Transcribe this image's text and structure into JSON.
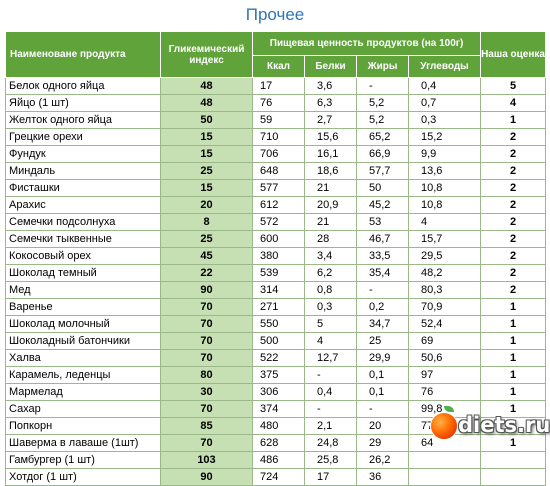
{
  "title": "Прочее",
  "headers": {
    "name": "Наименоване продукта",
    "gi": "Гликемический индекс",
    "nutrition": "Пищевая ценность продуктов (на 100г)",
    "kcal": "Ккал",
    "protein": "Белки",
    "fat": "Жиры",
    "carbs": "Углеводы",
    "rating": "Наша оценка"
  },
  "rows": [
    {
      "name": "Белок одного яйца",
      "gi": "48",
      "kcal": "17",
      "protein": "3,6",
      "fat": "-",
      "carbs": "0,4",
      "rating": "5"
    },
    {
      "name": "Яйцо (1 шт)",
      "gi": "48",
      "kcal": "76",
      "protein": "6,3",
      "fat": "5,2",
      "carbs": "0,7",
      "rating": "4"
    },
    {
      "name": "Желток одного яйца",
      "gi": "50",
      "kcal": "59",
      "protein": "2,7",
      "fat": "5,2",
      "carbs": "0,3",
      "rating": "1"
    },
    {
      "name": "Грецкие орехи",
      "gi": "15",
      "kcal": "710",
      "protein": "15,6",
      "fat": "65,2",
      "carbs": "15,2",
      "rating": "2"
    },
    {
      "name": "Фундук",
      "gi": "15",
      "kcal": "706",
      "protein": "16,1",
      "fat": "66,9",
      "carbs": "9,9",
      "rating": "2"
    },
    {
      "name": "Миндаль",
      "gi": "25",
      "kcal": "648",
      "protein": "18,6",
      "fat": "57,7",
      "carbs": "13,6",
      "rating": "2"
    },
    {
      "name": "Фисташки",
      "gi": "15",
      "kcal": "577",
      "protein": "21",
      "fat": "50",
      "carbs": "10,8",
      "rating": "2"
    },
    {
      "name": "Арахис",
      "gi": "20",
      "kcal": "612",
      "protein": "20,9",
      "fat": "45,2",
      "carbs": "10,8",
      "rating": "2"
    },
    {
      "name": "Семечки подсолнуха",
      "gi": "8",
      "kcal": "572",
      "protein": "21",
      "fat": "53",
      "carbs": "4",
      "rating": "2"
    },
    {
      "name": "Семечки тыквенные",
      "gi": "25",
      "kcal": "600",
      "protein": "28",
      "fat": "46,7",
      "carbs": "15,7",
      "rating": "2"
    },
    {
      "name": "Кокосовый орех",
      "gi": "45",
      "kcal": "380",
      "protein": "3,4",
      "fat": "33,5",
      "carbs": "29,5",
      "rating": "2"
    },
    {
      "name": "Шоколад темный",
      "gi": "22",
      "kcal": "539",
      "protein": "6,2",
      "fat": "35,4",
      "carbs": "48,2",
      "rating": "2"
    },
    {
      "name": "Мед",
      "gi": "90",
      "kcal": "314",
      "protein": "0,8",
      "fat": "-",
      "carbs": "80,3",
      "rating": "2"
    },
    {
      "name": "Варенье",
      "gi": "70",
      "kcal": "271",
      "protein": "0,3",
      "fat": "0,2",
      "carbs": "70,9",
      "rating": "1"
    },
    {
      "name": "Шоколад молочный",
      "gi": "70",
      "kcal": "550",
      "protein": "5",
      "fat": "34,7",
      "carbs": "52,4",
      "rating": "1"
    },
    {
      "name": "Шоколадный батончики",
      "gi": "70",
      "kcal": "500",
      "protein": "4",
      "fat": "25",
      "carbs": "69",
      "rating": "1"
    },
    {
      "name": "Халва",
      "gi": "70",
      "kcal": "522",
      "protein": "12,7",
      "fat": "29,9",
      "carbs": "50,6",
      "rating": "1"
    },
    {
      "name": "Карамель, леденцы",
      "gi": "80",
      "kcal": "375",
      "protein": "-",
      "fat": "0,1",
      "carbs": "97",
      "rating": "1"
    },
    {
      "name": "Мармелад",
      "gi": "30",
      "kcal": "306",
      "protein": "0,4",
      "fat": "0,1",
      "carbs": "76",
      "rating": "1"
    },
    {
      "name": "Сахар",
      "gi": "70",
      "kcal": "374",
      "protein": "-",
      "fat": "-",
      "carbs": "99,8",
      "rating": "1"
    },
    {
      "name": "Попкорн",
      "gi": "85",
      "kcal": "480",
      "protein": "2,1",
      "fat": "20",
      "carbs": "77,6",
      "rating": "1"
    },
    {
      "name": "Шаверма в лаваше (1шт)",
      "gi": "70",
      "kcal": "628",
      "protein": "24,8",
      "fat": "29",
      "carbs": "64",
      "rating": "1"
    },
    {
      "name": "Гамбургер (1 шт)",
      "gi": "103",
      "kcal": "486",
      "protein": "25,8",
      "fat": "26,2",
      "carbs": "",
      "rating": ""
    },
    {
      "name": "Хотдог (1 шт)",
      "gi": "90",
      "kcal": "724",
      "protein": "17",
      "fat": "36",
      "carbs": "",
      "rating": ""
    }
  ],
  "watermark": {
    "text": "diets.ru",
    "icon": "apple-logo-icon"
  }
}
